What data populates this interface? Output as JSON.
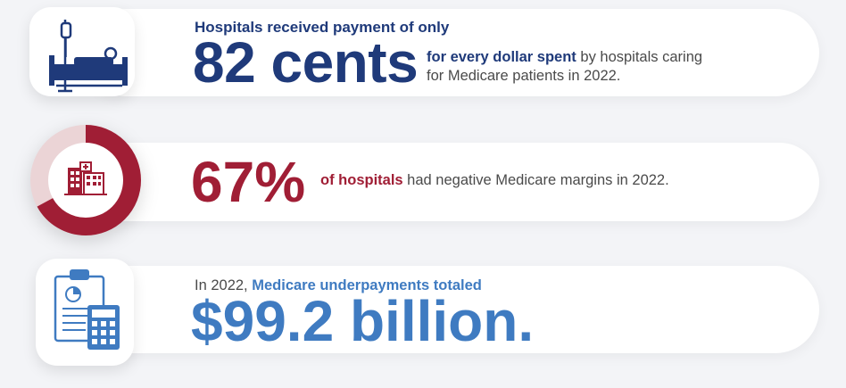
{
  "stat1": {
    "lead": "Hospitals received payment of only",
    "big": "82 cents",
    "desc_bold": "for every dollar spent",
    "desc_line1_rest": " by hospitals caring",
    "desc_line2": "for Medicare patients in 2022.",
    "icon": "hospital-bed-icon"
  },
  "stat2": {
    "big": "67%",
    "desc_bold": "of hospitals",
    "desc_rest": " had negative Medicare margins in 2022.",
    "icon": "hospital-building-icon",
    "donut_value": 0.67
  },
  "stat3": {
    "lead_prefix": "In 2022, ",
    "lead_bold": "Medicare underpayments totaled",
    "big": "$99.2 billion.",
    "icon": "clipboard-calculator-icon"
  },
  "colors": {
    "navy": "#1f3a7a",
    "red": "#a01e35",
    "blue": "#3f7bc1",
    "text": "#4a4a4a",
    "background": "#f3f4f7"
  }
}
